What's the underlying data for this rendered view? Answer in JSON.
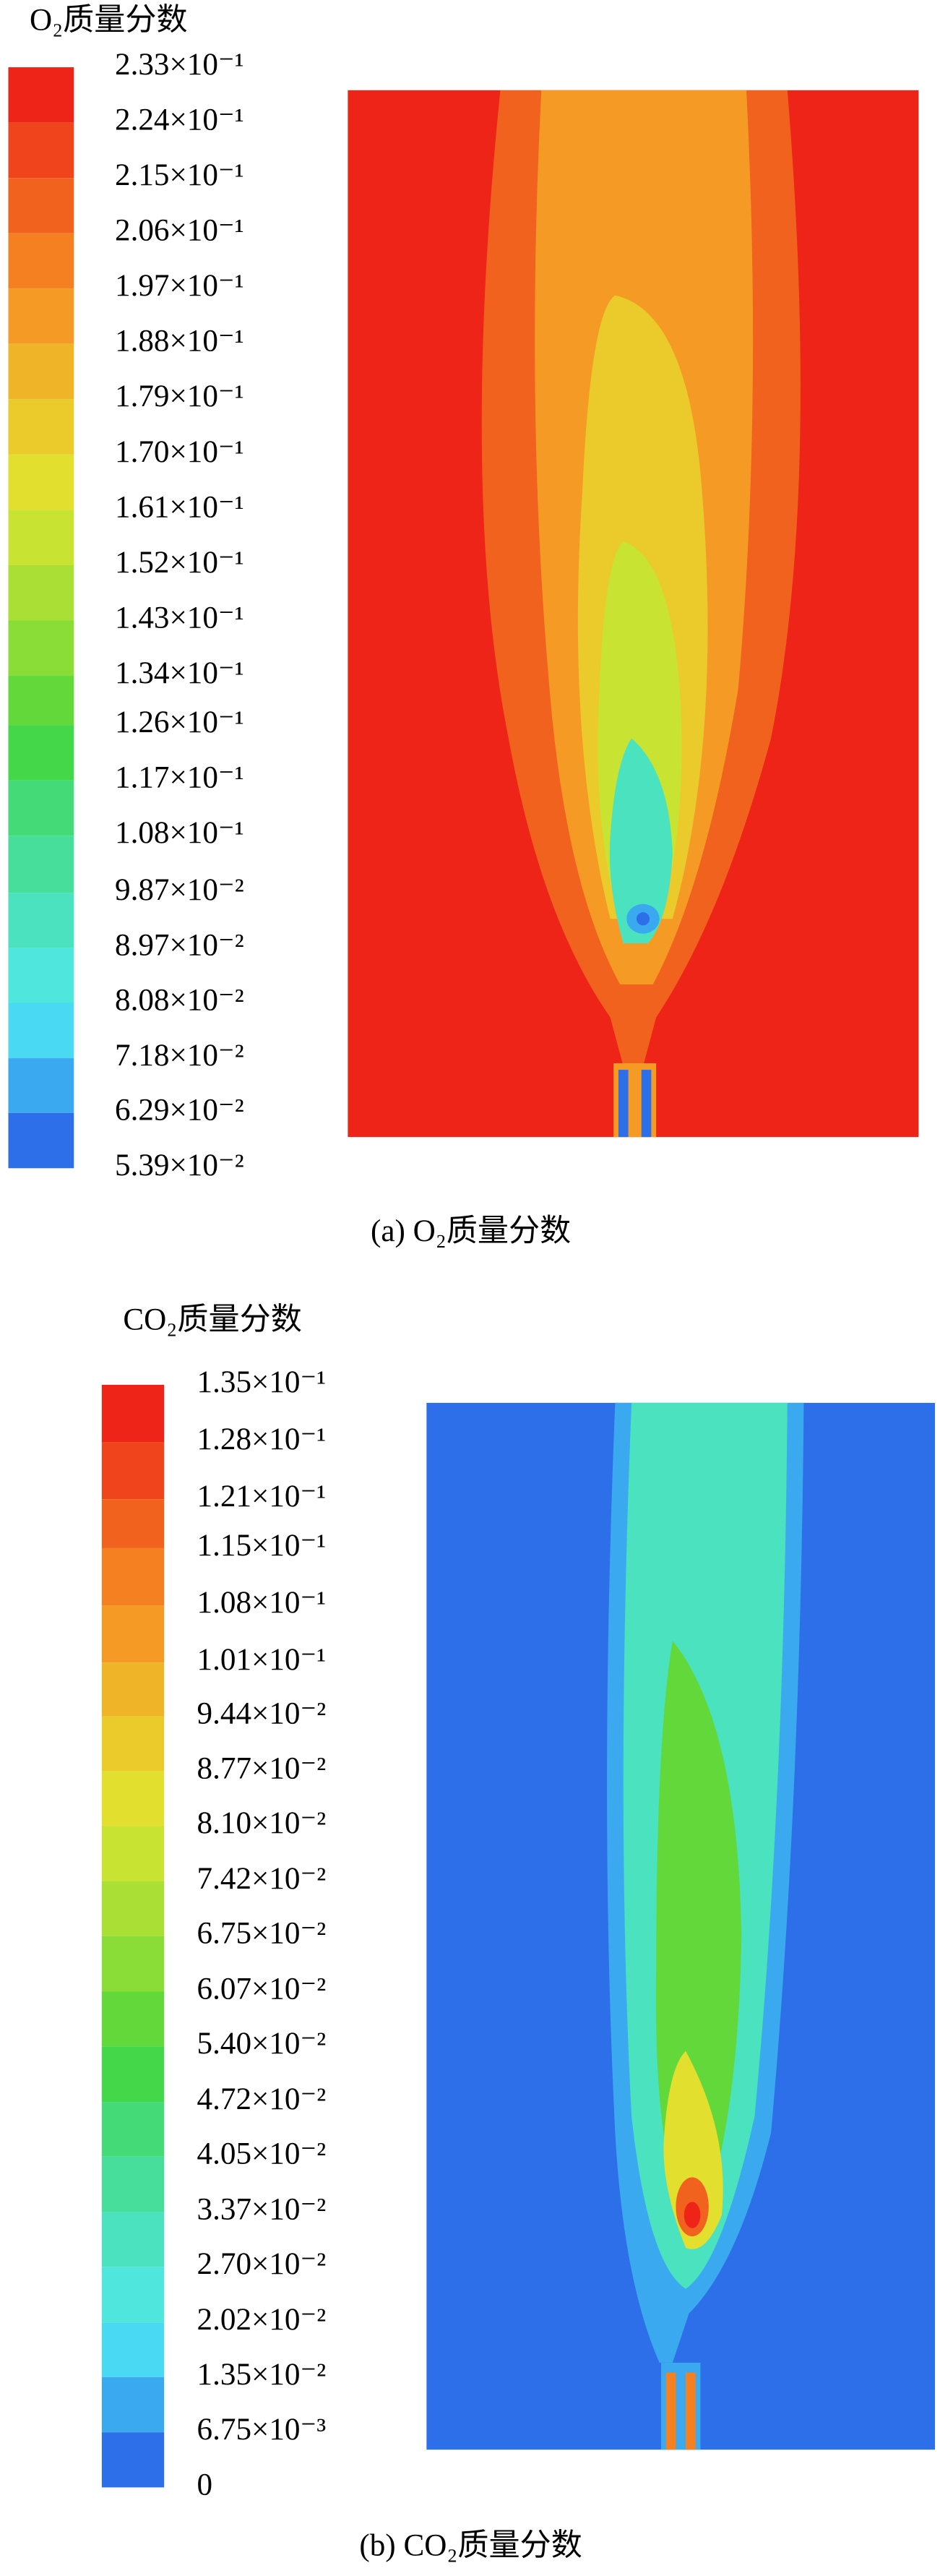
{
  "chart_data": [
    {
      "type": "contour",
      "colorbar_title": "O₂质量分数",
      "caption": "(a) O₂质量分数",
      "ylim": [
        0.0539,
        0.233
      ],
      "yticks": [
        {
          "value": 0.233,
          "label": "2.33×10⁻¹"
        },
        {
          "value": 0.224,
          "label": "2.24×10⁻¹"
        },
        {
          "value": 0.215,
          "label": "2.15×10⁻¹"
        },
        {
          "value": 0.206,
          "label": "2.06×10⁻¹"
        },
        {
          "value": 0.197,
          "label": "1.97×10⁻¹"
        },
        {
          "value": 0.188,
          "label": "1.88×10⁻¹"
        },
        {
          "value": 0.179,
          "label": "1.79×10⁻¹"
        },
        {
          "value": 0.17,
          "label": "1.70×10⁻¹"
        },
        {
          "value": 0.161,
          "label": "1.61×10⁻¹"
        },
        {
          "value": 0.152,
          "label": "1.52×10⁻¹"
        },
        {
          "value": 0.143,
          "label": "1.43×10⁻¹"
        },
        {
          "value": 0.134,
          "label": "1.34×10⁻¹"
        },
        {
          "value": 0.126,
          "label": "1.26×10⁻¹"
        },
        {
          "value": 0.117,
          "label": "1.17×10⁻¹"
        },
        {
          "value": 0.108,
          "label": "1.08×10⁻¹"
        },
        {
          "value": 0.0987,
          "label": "9.87×10⁻²"
        },
        {
          "value": 0.0897,
          "label": "8.97×10⁻²"
        },
        {
          "value": 0.0808,
          "label": "8.08×10⁻²"
        },
        {
          "value": 0.0718,
          "label": "7.18×10⁻²"
        },
        {
          "value": 0.0629,
          "label": "6.29×10⁻²"
        },
        {
          "value": 0.0539,
          "label": "5.39×10⁻²"
        }
      ],
      "colors": [
        "#ee2418",
        "#f0441c",
        "#f2621f",
        "#f48022",
        "#f59b25",
        "#f0b428",
        "#eacb2b",
        "#e3df2e",
        "#c8e332",
        "#aadf35",
        "#8adc37",
        "#62d83a",
        "#44d74a",
        "#45da78",
        "#47de9c",
        "#4ae2bf",
        "#4ee6dd",
        "#4ad9f2",
        "#3aa9ef",
        "#2d6fe8"
      ]
    },
    {
      "type": "contour",
      "colorbar_title": "CO₂质量分数",
      "caption": "(b) CO₂质量分数",
      "ylim": [
        0,
        0.135
      ],
      "yticks": [
        {
          "value": 0.135,
          "label": "1.35×10⁻¹"
        },
        {
          "value": 0.128,
          "label": "1.28×10⁻¹"
        },
        {
          "value": 0.121,
          "label": "1.21×10⁻¹"
        },
        {
          "value": 0.115,
          "label": "1.15×10⁻¹"
        },
        {
          "value": 0.108,
          "label": "1.08×10⁻¹"
        },
        {
          "value": 0.101,
          "label": "1.01×10⁻¹"
        },
        {
          "value": 0.0944,
          "label": "9.44×10⁻²"
        },
        {
          "value": 0.0877,
          "label": "8.77×10⁻²"
        },
        {
          "value": 0.081,
          "label": "8.10×10⁻²"
        },
        {
          "value": 0.0742,
          "label": "7.42×10⁻²"
        },
        {
          "value": 0.0675,
          "label": "6.75×10⁻²"
        },
        {
          "value": 0.0607,
          "label": "6.07×10⁻²"
        },
        {
          "value": 0.054,
          "label": "5.40×10⁻²"
        },
        {
          "value": 0.0472,
          "label": "4.72×10⁻²"
        },
        {
          "value": 0.0405,
          "label": "4.05×10⁻²"
        },
        {
          "value": 0.0337,
          "label": "3.37×10⁻²"
        },
        {
          "value": 0.027,
          "label": "2.70×10⁻²"
        },
        {
          "value": 0.0202,
          "label": "2.02×10⁻²"
        },
        {
          "value": 0.0135,
          "label": "1.35×10⁻²"
        },
        {
          "value": 0.00675,
          "label": "6.75×10⁻³"
        },
        0
      ],
      "colors": [
        "#ee2418",
        "#f0441c",
        "#f2621f",
        "#f48022",
        "#f59b25",
        "#f0b428",
        "#eacb2b",
        "#e3df2e",
        "#c8e332",
        "#aadf35",
        "#8adc37",
        "#62d83a",
        "#44d74a",
        "#45da78",
        "#47de9c",
        "#4ae2bf",
        "#4ee6dd",
        "#4ad9f2",
        "#3aa9ef",
        "#2d6fe8"
      ]
    }
  ]
}
